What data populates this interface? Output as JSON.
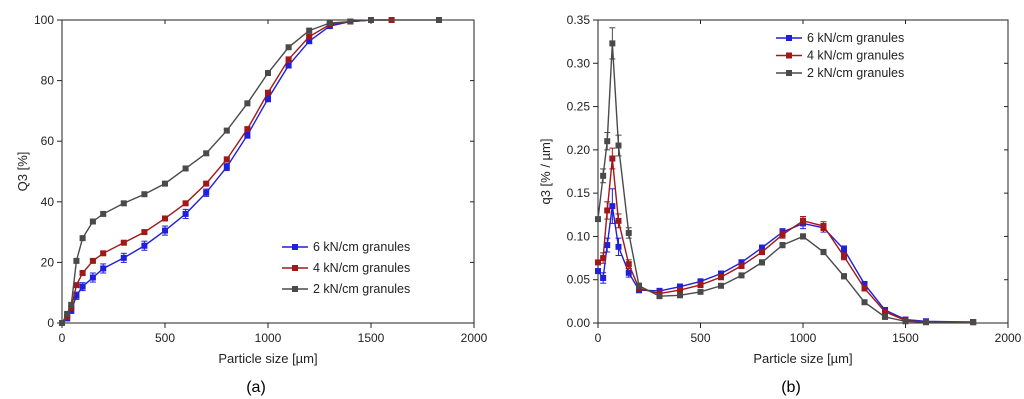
{
  "chart_data": [
    {
      "type": "line",
      "panel_label": "(a)",
      "xlabel": "Particle size [µm]",
      "ylabel": "Q3 [%]",
      "xlim": [
        0,
        2000
      ],
      "ylim": [
        0,
        100
      ],
      "xticks": [
        0,
        500,
        1000,
        1500,
        2000
      ],
      "yticks": [
        0,
        20,
        40,
        60,
        80,
        100
      ],
      "grid": false,
      "legend_position": "bottom-right",
      "series": [
        {
          "name": "6 kN/cm granules",
          "color": "#1f1fdc",
          "x": [
            0,
            25,
            45,
            70,
            100,
            150,
            200,
            300,
            400,
            500,
            600,
            700,
            800,
            900,
            1000,
            1100,
            1200,
            1300,
            1400,
            1500
          ],
          "y": [
            0,
            1.5,
            4,
            9,
            12,
            15,
            18,
            21.5,
            25.5,
            30.5,
            36,
            43,
            51.5,
            62,
            74,
            85,
            93,
            98,
            99.5,
            100
          ],
          "err": [
            0,
            0.5,
            0.7,
            1.2,
            1.3,
            1.5,
            1.5,
            1.5,
            1.5,
            1.5,
            1.5,
            1.2,
            1.2,
            1.0,
            1.0,
            0.8,
            0.6,
            0.4,
            0.2,
            0
          ]
        },
        {
          "name": "4 kN/cm granules",
          "color": "#a01818",
          "x": [
            0,
            25,
            45,
            70,
            100,
            150,
            200,
            300,
            400,
            500,
            600,
            700,
            800,
            900,
            1000,
            1100,
            1200,
            1300,
            1400,
            1500,
            1600
          ],
          "y": [
            0,
            2,
            5,
            12.5,
            16.5,
            20.5,
            23,
            26.5,
            30,
            34.5,
            39.5,
            46,
            54,
            64,
            76,
            87,
            94.5,
            98.5,
            99.5,
            100,
            100
          ],
          "err": [
            0,
            0.3,
            0.4,
            0.5,
            0.5,
            0.5,
            0.5,
            0.5,
            0.5,
            0.5,
            0.5,
            0.5,
            0.5,
            0.5,
            0.5,
            0.5,
            0.4,
            0.3,
            0.2,
            0,
            0
          ]
        },
        {
          "name": "2 kN/cm granules",
          "color": "#4a4a4a",
          "x": [
            0,
            25,
            45,
            70,
            100,
            150,
            200,
            300,
            400,
            500,
            600,
            700,
            800,
            900,
            1000,
            1100,
            1200,
            1300,
            1400,
            1500,
            1830
          ],
          "y": [
            0,
            3,
            6,
            20.5,
            28,
            33.5,
            36,
            39.5,
            42.5,
            46,
            51,
            56,
            63.5,
            72.5,
            82.5,
            91,
            96.5,
            99,
            99.5,
            100,
            100
          ],
          "err": [
            0,
            0.5,
            0.6,
            0.6,
            0.6,
            0.6,
            0.6,
            0.6,
            0.6,
            0.6,
            0.6,
            0.6,
            0.6,
            0.6,
            0.6,
            0.5,
            0.4,
            0.3,
            0.2,
            0,
            0
          ]
        }
      ]
    },
    {
      "type": "line",
      "panel_label": "(b)",
      "xlabel": "Particle size [µm]",
      "ylabel": "q3 [% / µm]",
      "xlim": [
        0,
        2000
      ],
      "ylim": [
        0,
        0.35
      ],
      "xticks": [
        0,
        500,
        1000,
        1500,
        2000
      ],
      "yticks": [
        "0.00",
        "0.05",
        "0.10",
        "0.15",
        "0.20",
        "0.25",
        "0.30",
        "0.35"
      ],
      "grid": false,
      "legend_position": "top-right",
      "series": [
        {
          "name": "6 kN/cm granules",
          "color": "#1f1fdc",
          "x": [
            0,
            25,
            45,
            70,
            100,
            150,
            200,
            300,
            400,
            500,
            600,
            700,
            800,
            900,
            1000,
            1100,
            1200,
            1300,
            1400,
            1500,
            1600,
            1830
          ],
          "y": [
            0.06,
            0.052,
            0.09,
            0.135,
            0.088,
            0.058,
            0.038,
            0.037,
            0.042,
            0.048,
            0.057,
            0.07,
            0.087,
            0.105,
            0.115,
            0.11,
            0.085,
            0.045,
            0.015,
            0.004,
            0.002,
            0.001
          ],
          "err": [
            0,
            0.006,
            0.008,
            0.02,
            0.01,
            0.005,
            0.003,
            0.003,
            0.003,
            0.003,
            0.003,
            0.003,
            0.003,
            0.004,
            0.006,
            0.005,
            0.004,
            0.003,
            0.002,
            0,
            0,
            0
          ]
        },
        {
          "name": "4 kN/cm granules",
          "color": "#a01818",
          "x": [
            0,
            25,
            45,
            70,
            100,
            150,
            200,
            300,
            400,
            500,
            600,
            700,
            800,
            900,
            1000,
            1100,
            1200,
            1300,
            1400,
            1500,
            1600,
            1830
          ],
          "y": [
            0.07,
            0.075,
            0.13,
            0.19,
            0.118,
            0.068,
            0.04,
            0.034,
            0.038,
            0.044,
            0.053,
            0.066,
            0.082,
            0.102,
            0.118,
            0.112,
            0.077,
            0.04,
            0.013,
            0.003,
            0.001,
            0.001
          ],
          "err": [
            0,
            0.006,
            0.01,
            0.012,
            0.008,
            0.005,
            0.003,
            0.003,
            0.003,
            0.003,
            0.003,
            0.003,
            0.003,
            0.004,
            0.005,
            0.005,
            0.004,
            0.003,
            0.002,
            0,
            0,
            0
          ]
        },
        {
          "name": "2 kN/cm granules",
          "color": "#4a4a4a",
          "x": [
            0,
            25,
            45,
            70,
            100,
            150,
            200,
            300,
            400,
            500,
            600,
            700,
            800,
            900,
            1000,
            1100,
            1200,
            1300,
            1400,
            1500,
            1600,
            1830
          ],
          "y": [
            0.12,
            0.17,
            0.21,
            0.323,
            0.205,
            0.104,
            0.043,
            0.031,
            0.032,
            0.036,
            0.043,
            0.055,
            0.07,
            0.09,
            0.1,
            0.082,
            0.054,
            0.024,
            0.007,
            0.002,
            0.001,
            0.001
          ],
          "err": [
            0,
            0.008,
            0.01,
            0.018,
            0.012,
            0.006,
            0.003,
            0.002,
            0.002,
            0.002,
            0.002,
            0.002,
            0.003,
            0.003,
            0.003,
            0.003,
            0.003,
            0.002,
            0.001,
            0,
            0,
            0
          ]
        }
      ]
    }
  ]
}
